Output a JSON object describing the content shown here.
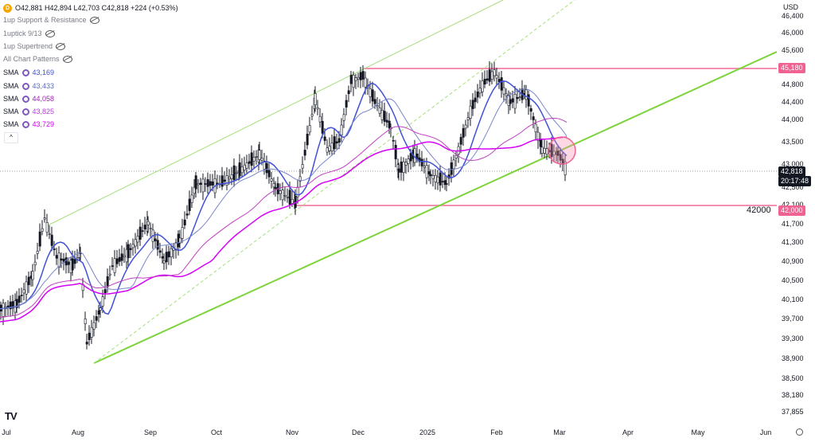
{
  "header": {
    "symbol_badge": "D",
    "ohlc_text": "O42,881 H42,894 L42,703 C42,818 +224 (+0.53%)"
  },
  "indicators": [
    {
      "label": "1up Support & Resistance"
    },
    {
      "label": "1uptick 9/13"
    },
    {
      "label": "1up Supertrend"
    },
    {
      "label": "All Chart Patterns"
    }
  ],
  "sma_rows": [
    {
      "label": "SMA",
      "value": "43,169",
      "color": "#3f51d6"
    },
    {
      "label": "SMA",
      "value": "43,433",
      "color": "#5c6bc0"
    },
    {
      "label": "SMA",
      "value": "44,058",
      "color": "#9c27b0"
    },
    {
      "label": "SMA",
      "value": "43,825",
      "color": "#b53ad6"
    },
    {
      "label": "SMA",
      "value": "43,729",
      "color": "#d500f9"
    }
  ],
  "collapse_glyph": "^",
  "price_axis": {
    "currency": "USD",
    "ticks": [
      "46,400",
      "46,000",
      "45,600",
      "44,800",
      "44,400",
      "44,000",
      "43,500",
      "43,000",
      "42,500",
      "42,100",
      "41,700",
      "41,300",
      "40,900",
      "40,500",
      "40,100",
      "39,700",
      "39,300",
      "38,900",
      "38,500",
      "38,180",
      "37,855"
    ],
    "current_price": "42,818",
    "countdown": "20:17:48",
    "resistance_tag": "45,180",
    "support_tag": "42,000"
  },
  "time_axis": {
    "labels": [
      "Jul",
      "Aug",
      "Sep",
      "Oct",
      "Nov",
      "Dec",
      "2025",
      "Feb",
      "Mar",
      "Apr",
      "May",
      "Jun"
    ]
  },
  "level_label": "42000",
  "logo_text": "TV",
  "chart_data": {
    "type": "candlestick",
    "resistance": 45180,
    "support": 42000,
    "last_close": 42818,
    "colors": {
      "candles": "#131722",
      "resistance_line": "#f48fb1",
      "channel": "#8bc34a",
      "sma_fast": "#3f51d6",
      "sma_mid": "#7986cb",
      "sma_slow": "#d500f9",
      "sma_mid2": "#c040c0"
    }
  }
}
